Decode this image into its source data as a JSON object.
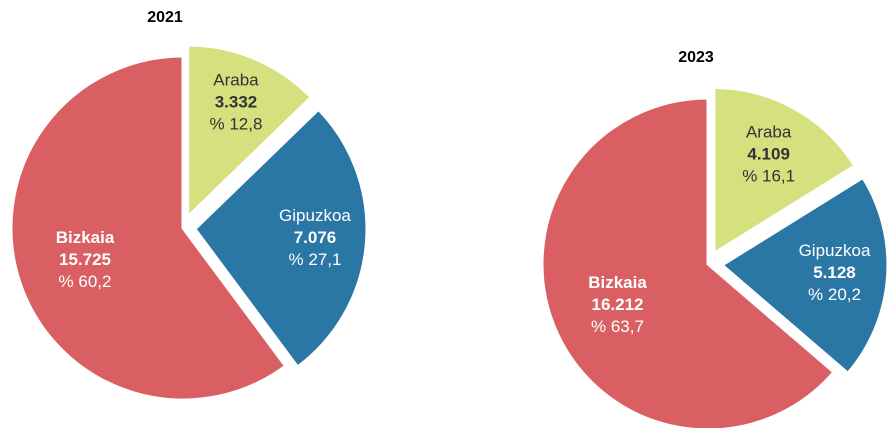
{
  "chart_data": [
    {
      "type": "pie",
      "title": "2021",
      "categories": [
        "Araba",
        "Gipuzkoa",
        "Bizkaia"
      ],
      "values": [
        3332,
        7076,
        15725
      ],
      "value_labels": [
        "3.332",
        "7.076",
        "15.725"
      ],
      "percent_labels": [
        "% 12,8",
        "% 27,1",
        "% 60,2"
      ],
      "colors": [
        "#d5e17f",
        "#2a76a4",
        "#d95f62"
      ]
    },
    {
      "type": "pie",
      "title": "2023",
      "categories": [
        "Araba",
        "Gipuzkoa",
        "Bizkaia"
      ],
      "values": [
        4109,
        5128,
        16212
      ],
      "value_labels": [
        "4.109",
        "5.128",
        "16.212"
      ],
      "percent_labels": [
        "% 16,1",
        "% 20,2",
        "% 63,7"
      ],
      "colors": [
        "#d5e17f",
        "#2a76a4",
        "#d95f62"
      ]
    }
  ]
}
